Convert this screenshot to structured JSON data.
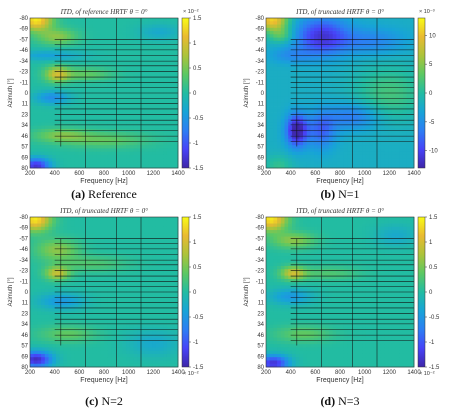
{
  "figure": {
    "panels": [
      {
        "title": "ITD, of reference HRTF θ = 0°",
        "caption_tag": "(a)",
        "caption_text": "Reference",
        "xlabel": "Frequency [Hz]",
        "ylabel": "Azimuth [°]",
        "colorbar": {
          "exponent": "× 10⁻²",
          "ticks": [
            "1.5",
            "1",
            "0.5",
            "0",
            "-0.5",
            "-1",
            "-1.5"
          ],
          "range": [
            -1.5,
            1.5
          ]
        }
      },
      {
        "title": "ITD, of truncated HRTF θ = 0°",
        "caption_tag": "(b)",
        "caption_text": "N=1",
        "xlabel": "Frequency [Hz]",
        "ylabel": "Azimuth [°]",
        "colorbar": {
          "exponent": "× 10⁻³",
          "ticks": [
            "10",
            "5",
            "0",
            "-5",
            "-10"
          ],
          "range": [
            -13,
            13
          ]
        }
      },
      {
        "title": "ITD, of truncated HRTF θ = 0°",
        "caption_tag": "(c)",
        "caption_text": "N=2",
        "xlabel": "Frequency [Hz]",
        "ylabel": "Azimuth [°]",
        "colorbar": {
          "exponent": "× 10⁻²",
          "ticks": [
            "1.5",
            "1",
            "0.5",
            "0",
            "-0.5",
            "-1",
            "-1.5"
          ],
          "range": [
            -1.5,
            1.5
          ]
        }
      },
      {
        "title": "ITD, of truncated HRTF θ = 0°",
        "caption_tag": "(d)",
        "caption_text": "N=3",
        "xlabel": "Frequency [Hz]",
        "ylabel": "Azimuth [°]",
        "colorbar": {
          "exponent": "× 10⁻²",
          "ticks": [
            "1.5",
            "1",
            "0.5",
            "0",
            "-0.5",
            "-1",
            "-1.5"
          ],
          "range": [
            -1.5,
            1.5
          ]
        }
      }
    ]
  },
  "chart_data": {
    "type": "heatmap",
    "x_ticks": [
      200,
      400,
      600,
      800,
      1000,
      1200,
      1400
    ],
    "x_tick_labels": [
      "200",
      "400",
      "600",
      "800",
      "1000",
      "1200",
      "1400"
    ],
    "xlim": [
      200,
      1400
    ],
    "y_ticks": [
      -80,
      -69,
      -57,
      -46,
      -34,
      -23,
      -11,
      0,
      11,
      23,
      34,
      46,
      57,
      69,
      80
    ],
    "y_tick_labels": [
      "-80",
      "-69",
      "-57",
      "-46",
      "-34",
      "-23",
      "-11",
      "0",
      "11",
      "23",
      "34",
      "46",
      "57",
      "69",
      "80"
    ],
    "ylim": [
      -80,
      80
    ],
    "vertical_grid_x": [
      650,
      900,
      1100
    ],
    "horizontal_grid_y": [
      -57,
      -52,
      -46,
      -40,
      -34,
      -29,
      -23,
      -17,
      -11,
      -6,
      0,
      6,
      11,
      17,
      23,
      29,
      34,
      40,
      46,
      52
    ],
    "colormap": [
      "#3e26a8",
      "#4743f8",
      "#2c7ef3",
      "#17a4d7",
      "#22bca2",
      "#5cc863",
      "#acc33a",
      "#e9ba31",
      "#f9fb15"
    ],
    "heatmaps": [
      {
        "label": "(a) Reference",
        "vmin": -1.5,
        "vmax": 1.5,
        "base": 0.0,
        "blobs": [
          {
            "x": 250,
            "y": -78,
            "sx": 90,
            "sy": 8,
            "a": 1.4
          },
          {
            "x": 420,
            "y": -60,
            "sx": 110,
            "sy": 6,
            "a": 0.6
          },
          {
            "x": 420,
            "y": -20,
            "sx": 70,
            "sy": 6,
            "a": 0.9
          },
          {
            "x": 650,
            "y": -20,
            "sx": 150,
            "sy": 5,
            "a": 0.4
          },
          {
            "x": 350,
            "y": -40,
            "sx": 200,
            "sy": 4,
            "a": -0.4
          },
          {
            "x": 380,
            "y": 5,
            "sx": 100,
            "sy": 5,
            "a": -0.6
          },
          {
            "x": 450,
            "y": 45,
            "sx": 150,
            "sy": 5,
            "a": 0.5
          },
          {
            "x": 800,
            "y": 50,
            "sx": 250,
            "sy": 6,
            "a": 0.4
          },
          {
            "x": 250,
            "y": 78,
            "sx": 80,
            "sy": 6,
            "a": -1.3
          },
          {
            "x": 1250,
            "y": -65,
            "sx": 120,
            "sy": 6,
            "a": -0.3
          }
        ]
      },
      {
        "label": "(b) N=1",
        "vmin": -13,
        "vmax": 13,
        "base": -2.0,
        "blobs": [
          {
            "x": 250,
            "y": -78,
            "sx": 90,
            "sy": 8,
            "a": 13
          },
          {
            "x": 320,
            "y": -62,
            "sx": 70,
            "sy": 6,
            "a": 5
          },
          {
            "x": 400,
            "y": -40,
            "sx": 120,
            "sy": 6,
            "a": -3
          },
          {
            "x": 650,
            "y": -60,
            "sx": 150,
            "sy": 14,
            "a": -9
          },
          {
            "x": 1050,
            "y": -55,
            "sx": 200,
            "sy": 10,
            "a": -4
          },
          {
            "x": 450,
            "y": 40,
            "sx": 60,
            "sy": 12,
            "a": -12
          },
          {
            "x": 650,
            "y": 40,
            "sx": 80,
            "sy": 14,
            "a": -6
          },
          {
            "x": 900,
            "y": 25,
            "sx": 150,
            "sy": 10,
            "a": -5
          },
          {
            "x": 1200,
            "y": 0,
            "sx": 200,
            "sy": 20,
            "a": 4
          },
          {
            "x": 300,
            "y": 78,
            "sx": 80,
            "sy": 8,
            "a": 3
          }
        ]
      },
      {
        "label": "(c) N=2",
        "vmin": -1.5,
        "vmax": 1.5,
        "base": 0.0,
        "blobs": [
          {
            "x": 240,
            "y": -78,
            "sx": 90,
            "sy": 9,
            "a": 1.4
          },
          {
            "x": 420,
            "y": -45,
            "sx": 120,
            "sy": 8,
            "a": 0.6
          },
          {
            "x": 420,
            "y": -20,
            "sx": 70,
            "sy": 5,
            "a": 0.9
          },
          {
            "x": 700,
            "y": -30,
            "sx": 200,
            "sy": 6,
            "a": 0.3
          },
          {
            "x": 450,
            "y": 10,
            "sx": 130,
            "sy": 6,
            "a": -0.5
          },
          {
            "x": 500,
            "y": 45,
            "sx": 160,
            "sy": 6,
            "a": 0.4
          },
          {
            "x": 250,
            "y": 72,
            "sx": 90,
            "sy": 6,
            "a": -1.4
          },
          {
            "x": 1200,
            "y": 55,
            "sx": 150,
            "sy": 10,
            "a": -0.3
          }
        ]
      },
      {
        "label": "(d) N=3",
        "vmin": -1.5,
        "vmax": 1.5,
        "base": 0.0,
        "blobs": [
          {
            "x": 240,
            "y": -78,
            "sx": 90,
            "sy": 9,
            "a": 1.4
          },
          {
            "x": 420,
            "y": -55,
            "sx": 120,
            "sy": 6,
            "a": 0.6
          },
          {
            "x": 420,
            "y": -20,
            "sx": 70,
            "sy": 5,
            "a": 0.9
          },
          {
            "x": 700,
            "y": -20,
            "sx": 180,
            "sy": 5,
            "a": 0.3
          },
          {
            "x": 400,
            "y": 5,
            "sx": 120,
            "sy": 6,
            "a": -0.5
          },
          {
            "x": 500,
            "y": 45,
            "sx": 160,
            "sy": 6,
            "a": 0.4
          },
          {
            "x": 260,
            "y": 76,
            "sx": 90,
            "sy": 6,
            "a": -1.3
          },
          {
            "x": 1250,
            "y": -60,
            "sx": 120,
            "sy": 8,
            "a": -0.3
          }
        ]
      }
    ]
  }
}
